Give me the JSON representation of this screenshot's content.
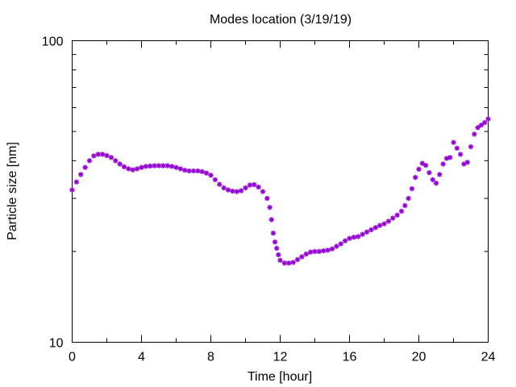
{
  "chart_data": {
    "type": "scatter",
    "title": "Modes location (3/19/19)",
    "xlabel": "Time [hour]",
    "ylabel": "Particle size [nm]",
    "xlim": [
      0,
      24
    ],
    "ylim": [
      10,
      100
    ],
    "yscale": "log",
    "grid": false,
    "x_ticks": [
      0,
      4,
      8,
      12,
      16,
      20,
      24
    ],
    "x_tick_labels": [
      "0",
      "4",
      "8",
      "12",
      "16",
      "20",
      "24"
    ],
    "y_ticks": [
      10,
      100
    ],
    "y_tick_labels": [
      "10",
      "100"
    ],
    "series": [
      {
        "color": "#9400d3",
        "marker": "star",
        "x": [
          0.0,
          0.25,
          0.5,
          0.75,
          1.0,
          1.25,
          1.5,
          1.75,
          2.0,
          2.25,
          2.5,
          2.75,
          3.0,
          3.25,
          3.5,
          3.75,
          4.0,
          4.25,
          4.5,
          4.75,
          5.0,
          5.25,
          5.5,
          5.75,
          6.0,
          6.25,
          6.5,
          6.75,
          7.0,
          7.25,
          7.5,
          7.75,
          8.0,
          8.25,
          8.5,
          8.75,
          9.0,
          9.25,
          9.5,
          9.75,
          10.0,
          10.25,
          10.5,
          10.75,
          11.0,
          11.25,
          11.4,
          11.5,
          11.6,
          11.7,
          11.8,
          11.9,
          12.0,
          12.25,
          12.5,
          12.75,
          13.0,
          13.25,
          13.5,
          13.75,
          14.0,
          14.25,
          14.5,
          14.75,
          15.0,
          15.25,
          15.5,
          15.75,
          16.0,
          16.25,
          16.5,
          16.75,
          17.0,
          17.25,
          17.5,
          17.75,
          18.0,
          18.25,
          18.5,
          18.75,
          19.0,
          19.2,
          19.4,
          19.6,
          19.8,
          20.0,
          20.2,
          20.4,
          20.6,
          20.8,
          21.0,
          21.2,
          21.4,
          21.6,
          21.8,
          22.0,
          22.2,
          22.4,
          22.6,
          22.8,
          23.0,
          23.2,
          23.4,
          23.6,
          23.8,
          24.0
        ],
        "y": [
          32.0,
          34.0,
          36.0,
          38.0,
          40.0,
          41.5,
          42.0,
          42.0,
          41.6,
          41.0,
          40.0,
          39.0,
          38.2,
          37.6,
          37.3,
          37.6,
          38.0,
          38.3,
          38.4,
          38.5,
          38.5,
          38.5,
          38.5,
          38.3,
          38.0,
          37.6,
          37.2,
          37.0,
          37.0,
          37.0,
          36.8,
          36.4,
          35.8,
          34.6,
          33.4,
          32.5,
          32.0,
          31.7,
          31.6,
          31.8,
          32.5,
          33.2,
          33.3,
          32.7,
          31.6,
          30.0,
          28.0,
          25.5,
          23.0,
          21.5,
          20.5,
          19.5,
          18.7,
          18.3,
          18.3,
          18.4,
          18.8,
          19.2,
          19.6,
          19.9,
          20.0,
          20.0,
          20.1,
          20.2,
          20.4,
          20.8,
          21.2,
          21.7,
          22.1,
          22.3,
          22.4,
          22.8,
          23.2,
          23.6,
          24.0,
          24.4,
          24.7,
          25.2,
          25.8,
          26.4,
          27.2,
          28.4,
          30.0,
          32.3,
          35.2,
          37.5,
          39.2,
          38.6,
          36.5,
          34.6,
          33.7,
          36.0,
          39.0,
          40.7,
          41.0,
          46.0,
          44.0,
          42.0,
          39.0,
          39.5,
          44.5,
          49.0,
          51.5,
          52.5,
          53.5,
          55.0
        ]
      }
    ]
  }
}
